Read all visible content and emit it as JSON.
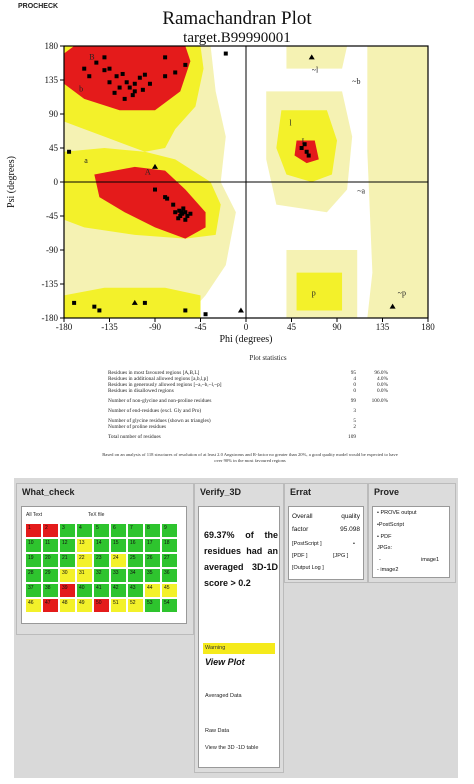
{
  "header": {
    "procheck_label": "PROCHECK",
    "title": "Ramachandran Plot",
    "subtitle": "target.B99990001"
  },
  "chart_data": {
    "type": "scatter",
    "title": "Ramachandran Plot",
    "subtitle": "target.B99990001",
    "xlabel": "Phi (degrees)",
    "ylabel": "Psi (degrees)",
    "xlim": [
      -180,
      180
    ],
    "ylim": [
      -180,
      180
    ],
    "xticks": [
      "-180",
      "-135",
      "-90",
      "-45",
      "0",
      "45",
      "90",
      "135",
      "180"
    ],
    "yticks": [
      "180",
      "135",
      "90",
      "45",
      "0",
      "-45",
      "-90",
      "-135",
      "-180"
    ],
    "region_labels": [
      "B",
      "b",
      "a",
      "A",
      "L",
      "l",
      "~l",
      "~b",
      "~a",
      "p",
      "~p"
    ],
    "colors": {
      "most_favoured": "#e41b1b",
      "additional": "#f3f12a",
      "generous": "#f5f2b3",
      "disallowed": "#ffffff",
      "points": "#000000"
    },
    "points": [
      [
        -148,
        158
      ],
      [
        -140,
        148
      ],
      [
        -135,
        150
      ],
      [
        -128,
        140
      ],
      [
        -122,
        143
      ],
      [
        -118,
        132
      ],
      [
        -125,
        125
      ],
      [
        -115,
        125
      ],
      [
        -110,
        130
      ],
      [
        -105,
        138
      ],
      [
        -100,
        142
      ],
      [
        -95,
        130
      ],
      [
        -120,
        110
      ],
      [
        -112,
        115
      ],
      [
        -130,
        118
      ],
      [
        -80,
        140
      ],
      [
        -70,
        145
      ],
      [
        -60,
        155
      ],
      [
        -140,
        165
      ],
      [
        -155,
        140
      ],
      [
        -160,
        150
      ],
      [
        -135,
        132
      ],
      [
        -110,
        120
      ],
      [
        -102,
        122
      ],
      [
        -66,
        -38
      ],
      [
        -63,
        -42
      ],
      [
        -60,
        -40
      ],
      [
        -58,
        -45
      ],
      [
        -65,
        -45
      ],
      [
        -70,
        -40
      ],
      [
        -62,
        -35
      ],
      [
        -67,
        -48
      ],
      [
        -55,
        -42
      ],
      [
        -72,
        -30
      ],
      [
        -60,
        -50
      ],
      [
        -78,
        -22
      ],
      [
        -90,
        -10
      ],
      [
        -80,
        -20
      ],
      [
        -64,
        -40
      ],
      [
        60,
        40
      ],
      [
        55,
        45
      ],
      [
        62,
        35
      ],
      [
        58,
        50
      ],
      [
        -170,
        -160
      ],
      [
        -150,
        -165
      ],
      [
        -145,
        -170
      ],
      [
        -100,
        -160
      ],
      [
        -60,
        -170
      ],
      [
        -40,
        -175
      ],
      [
        -80,
        165
      ],
      [
        -20,
        170
      ],
      [
        -175,
        40
      ]
    ],
    "triangles": [
      [
        -110,
        -160
      ],
      [
        65,
        165
      ],
      [
        145,
        -165
      ],
      [
        -90,
        20
      ],
      [
        -5,
        -170
      ]
    ]
  },
  "stats": {
    "heading": "Plot statistics",
    "rows": [
      {
        "label": "Residues in most favoured regions  [A,B,L]",
        "count": "95",
        "pct": "96.0%"
      },
      {
        "label": "Residues in additional allowed regions  [a,b,l,p]",
        "count": "4",
        "pct": "4.0%"
      },
      {
        "label": "Residues in generously allowed regions  [~a,~b,~l,~p]",
        "count": "0",
        "pct": "0.0%"
      },
      {
        "label": "Residues in disallowed regions",
        "count": "0",
        "pct": "0.0%"
      },
      {
        "label": "Number of non-glycine and non-proline residues",
        "count": "99",
        "pct": "100.0%"
      },
      {
        "label": "Number of end-residues (excl. Gly and Pro)",
        "count": "3",
        "pct": ""
      },
      {
        "label": "Number of glycine residues (shown as triangles)",
        "count": "5",
        "pct": ""
      },
      {
        "label": "Number of proline residues",
        "count": "2",
        "pct": ""
      },
      {
        "label": "Total number of residues",
        "count": "109",
        "pct": ""
      }
    ],
    "footnote": "Based on an analysis of 118 structures of resolution of at least 2.0 Angstroms and R-factor no greater than 20%, a good quality model would be expected to have over 90% in the most favoured regions"
  },
  "what_check": {
    "title": "What_check",
    "all_text": "All Text",
    "tex_file": "TeX file",
    "cells": [
      {
        "n": "1",
        "c": "r"
      },
      {
        "n": "2",
        "c": "r"
      },
      {
        "n": "3",
        "c": "g"
      },
      {
        "n": "4",
        "c": "g"
      },
      {
        "n": "5",
        "c": "g"
      },
      {
        "n": "6",
        "c": "g"
      },
      {
        "n": "7",
        "c": "g"
      },
      {
        "n": "8",
        "c": "g"
      },
      {
        "n": "9",
        "c": "g"
      },
      {
        "n": "10",
        "c": "g"
      },
      {
        "n": "11",
        "c": "g"
      },
      {
        "n": "12",
        "c": "g"
      },
      {
        "n": "13",
        "c": "y"
      },
      {
        "n": "14",
        "c": "g"
      },
      {
        "n": "15",
        "c": "g"
      },
      {
        "n": "16",
        "c": "g"
      },
      {
        "n": "17",
        "c": "g"
      },
      {
        "n": "18",
        "c": "g"
      },
      {
        "n": "19",
        "c": "g"
      },
      {
        "n": "20",
        "c": "g"
      },
      {
        "n": "21",
        "c": "g"
      },
      {
        "n": "22",
        "c": "y"
      },
      {
        "n": "23",
        "c": "g"
      },
      {
        "n": "24",
        "c": "y"
      },
      {
        "n": "25",
        "c": "g"
      },
      {
        "n": "26",
        "c": "g"
      },
      {
        "n": "27",
        "c": "g"
      },
      {
        "n": "28",
        "c": "g"
      },
      {
        "n": "29",
        "c": "g"
      },
      {
        "n": "30",
        "c": "y"
      },
      {
        "n": "31",
        "c": "y"
      },
      {
        "n": "32",
        "c": "g"
      },
      {
        "n": "33",
        "c": "g"
      },
      {
        "n": "34",
        "c": "g"
      },
      {
        "n": "35",
        "c": "g"
      },
      {
        "n": "36",
        "c": "g"
      },
      {
        "n": "37",
        "c": "g"
      },
      {
        "n": "38",
        "c": "g"
      },
      {
        "n": "39",
        "c": "r"
      },
      {
        "n": "40",
        "c": "g"
      },
      {
        "n": "41",
        "c": "g"
      },
      {
        "n": "42",
        "c": "g"
      },
      {
        "n": "43",
        "c": "g"
      },
      {
        "n": "44",
        "c": "y"
      },
      {
        "n": "45",
        "c": "y"
      },
      {
        "n": "46",
        "c": "y"
      },
      {
        "n": "47",
        "c": "r"
      },
      {
        "n": "48",
        "c": "y"
      },
      {
        "n": "49",
        "c": "y"
      },
      {
        "n": "50",
        "c": "r"
      },
      {
        "n": "51",
        "c": "y"
      },
      {
        "n": "52",
        "c": "y"
      },
      {
        "n": "53",
        "c": "g"
      },
      {
        "n": "54",
        "c": "g"
      }
    ]
  },
  "verify_3d": {
    "title": "Verify_3D",
    "summary": "69.37% of the residues had an averaged 3D-1D score > 0.2",
    "warning": "Warning",
    "view_plot": "View Plot",
    "averaged_data": "Averaged Data",
    "raw_data": "Raw Data",
    "view_table": "View  the 3D    -1D table"
  },
  "errat": {
    "title": "Errat",
    "overall_label": "Overall",
    "quality_label": "quality",
    "factor_label": "factor",
    "factor_value": "95.098",
    "postscript": "[PostScript    ]",
    "bullet": "•",
    "pdf": "[PDF  ]",
    "jpg": "[JPG  ]",
    "output_log": "[Output Log  ]"
  },
  "prove": {
    "title": "Prove",
    "output": "• PROVE output",
    "postscript": "•PostScript",
    "pdf": "• PDF",
    "jpgs": "JPGs:",
    "dash": "-",
    "image1": "image1",
    "image2": "- image2"
  }
}
